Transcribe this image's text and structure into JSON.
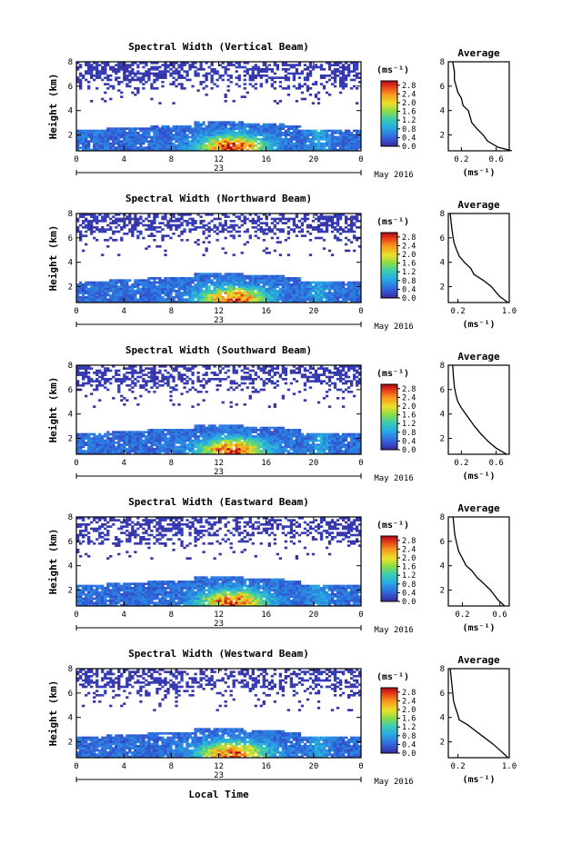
{
  "figure": {
    "date_label": "May 2016",
    "xlabel": "Local Time",
    "ylabel": "Height (km)",
    "colorbar_unit": "(ms⁻¹)",
    "profile_title": "Average",
    "profile_unit": "(ms⁻¹)"
  },
  "chart_data": [
    {
      "type": "heatmap",
      "title": "Spectral Width (Vertical Beam)",
      "xlabel": "Local Time",
      "ylabel": "Height (km)",
      "x_ticks": [
        "0",
        "4",
        "8",
        "12",
        "16",
        "20",
        "0"
      ],
      "x_sublabel": "23",
      "xlim": [
        0,
        24
      ],
      "y_ticks": [
        "2",
        "4",
        "6",
        "8"
      ],
      "ylim": [
        0.7,
        8
      ],
      "colorbar": {
        "unit": "(ms⁻¹)",
        "ticks": [
          "0.0",
          "0.4",
          "0.8",
          "1.2",
          "1.6",
          "2.0",
          "2.4",
          "2.8"
        ],
        "range": [
          0,
          3.0
        ]
      },
      "profile": {
        "title": "Average",
        "xlabel": "(ms⁻¹)",
        "x_ticks": [
          "0.2",
          "0.6"
        ],
        "xlim": [
          0.05,
          0.75
        ],
        "y_ticks": [
          "2",
          "4",
          "6",
          "8"
        ],
        "ylim": [
          0.7,
          8
        ],
        "points": [
          [
            0.78,
            0.7
          ],
          [
            0.62,
            1.0
          ],
          [
            0.5,
            1.5
          ],
          [
            0.45,
            2.0
          ],
          [
            0.38,
            2.5
          ],
          [
            0.32,
            3.0
          ],
          [
            0.3,
            3.5
          ],
          [
            0.28,
            4.0
          ],
          [
            0.22,
            4.4
          ],
          [
            0.2,
            5.0
          ],
          [
            0.16,
            5.5
          ],
          [
            0.14,
            6.0
          ],
          [
            0.12,
            6.5
          ],
          [
            0.12,
            7.2
          ],
          [
            0.1,
            8.0
          ]
        ]
      }
    },
    {
      "type": "heatmap",
      "title": "Spectral Width (Northward Beam)",
      "xlabel": "Local Time",
      "ylabel": "Height (km)",
      "x_ticks": [
        "0",
        "4",
        "8",
        "12",
        "16",
        "20",
        "0"
      ],
      "x_sublabel": "23",
      "xlim": [
        0,
        24
      ],
      "y_ticks": [
        "2",
        "4",
        "6",
        "8"
      ],
      "ylim": [
        0.7,
        8
      ],
      "colorbar": {
        "unit": "(ms⁻¹)",
        "ticks": [
          "0.0",
          "0.4",
          "0.8",
          "1.2",
          "1.6",
          "2.0",
          "2.4",
          "2.8"
        ],
        "range": [
          0,
          3.0
        ]
      },
      "profile": {
        "title": "Average",
        "xlabel": "(ms⁻¹)",
        "x_ticks": [
          "0.2",
          "1.0"
        ],
        "xlim": [
          0.05,
          1.0
        ],
        "y_ticks": [
          "2",
          "4",
          "6",
          "8"
        ],
        "ylim": [
          0.7,
          8
        ],
        "points": [
          [
            0.98,
            0.7
          ],
          [
            0.85,
            1.2
          ],
          [
            0.72,
            2.0
          ],
          [
            0.6,
            2.5
          ],
          [
            0.45,
            3.0
          ],
          [
            0.4,
            3.5
          ],
          [
            0.3,
            4.0
          ],
          [
            0.22,
            4.5
          ],
          [
            0.18,
            5.0
          ],
          [
            0.14,
            5.6
          ],
          [
            0.12,
            6.2
          ],
          [
            0.1,
            7.0
          ],
          [
            0.08,
            8.0
          ]
        ]
      }
    },
    {
      "type": "heatmap",
      "title": "Spectral Width (Southward Beam)",
      "xlabel": "Local Time",
      "ylabel": "Height (km)",
      "x_ticks": [
        "0",
        "4",
        "8",
        "12",
        "16",
        "20",
        "0"
      ],
      "x_sublabel": "23",
      "xlim": [
        0,
        24
      ],
      "y_ticks": [
        "2",
        "4",
        "6",
        "8"
      ],
      "ylim": [
        0.7,
        8
      ],
      "colorbar": {
        "unit": "(ms⁻¹)",
        "ticks": [
          "0.0",
          "0.4",
          "0.8",
          "1.2",
          "1.6",
          "2.0",
          "2.4",
          "2.8"
        ],
        "range": [
          0,
          3.0
        ]
      },
      "profile": {
        "title": "Average",
        "xlabel": "(ms⁻¹)",
        "x_ticks": [
          "0.2",
          "0.6"
        ],
        "xlim": [
          0.05,
          0.75
        ],
        "y_ticks": [
          "2",
          "4",
          "6",
          "8"
        ],
        "ylim": [
          0.7,
          8
        ],
        "points": [
          [
            0.72,
            0.7
          ],
          [
            0.6,
            1.2
          ],
          [
            0.5,
            1.8
          ],
          [
            0.42,
            2.4
          ],
          [
            0.35,
            3.0
          ],
          [
            0.3,
            3.5
          ],
          [
            0.25,
            4.0
          ],
          [
            0.2,
            4.5
          ],
          [
            0.16,
            5.0
          ],
          [
            0.14,
            5.5
          ],
          [
            0.12,
            6.2
          ],
          [
            0.11,
            7.0
          ],
          [
            0.1,
            8.0
          ]
        ]
      }
    },
    {
      "type": "heatmap",
      "title": "Spectral Width (Eastward Beam)",
      "xlabel": "Local Time",
      "ylabel": "Height (km)",
      "x_ticks": [
        "0",
        "4",
        "8",
        "12",
        "16",
        "20",
        "0"
      ],
      "x_sublabel": "23",
      "xlim": [
        0,
        24
      ],
      "y_ticks": [
        "2",
        "4",
        "6",
        "8"
      ],
      "ylim": [
        0.7,
        8
      ],
      "colorbar": {
        "unit": "(ms⁻¹)",
        "ticks": [
          "0.0",
          "0.4",
          "0.8",
          "1.2",
          "1.6",
          "2.0",
          "2.4",
          "2.8"
        ],
        "range": [
          0,
          3.0
        ]
      },
      "profile": {
        "title": "Average",
        "xlabel": "(ms⁻¹)",
        "x_ticks": [
          "0.2",
          "0.6"
        ],
        "xlim": [
          0.05,
          0.7
        ],
        "y_ticks": [
          "2",
          "4",
          "6",
          "8"
        ],
        "ylim": [
          0.7,
          8
        ],
        "points": [
          [
            0.65,
            0.7
          ],
          [
            0.58,
            1.2
          ],
          [
            0.5,
            2.0
          ],
          [
            0.42,
            2.6
          ],
          [
            0.36,
            3.0
          ],
          [
            0.3,
            3.6
          ],
          [
            0.24,
            4.0
          ],
          [
            0.2,
            4.6
          ],
          [
            0.16,
            5.2
          ],
          [
            0.14,
            5.8
          ],
          [
            0.12,
            6.5
          ],
          [
            0.11,
            7.2
          ],
          [
            0.1,
            8.0
          ]
        ]
      }
    },
    {
      "type": "heatmap",
      "title": "Spectral Width (Westward Beam)",
      "xlabel": "Local Time",
      "ylabel": "Height (km)",
      "x_ticks": [
        "0",
        "4",
        "8",
        "12",
        "16",
        "20",
        "0"
      ],
      "x_sublabel": "23",
      "xlim": [
        0,
        24
      ],
      "y_ticks": [
        "2",
        "4",
        "6",
        "8"
      ],
      "ylim": [
        0.7,
        8
      ],
      "colorbar": {
        "unit": "(ms⁻¹)",
        "ticks": [
          "0.0",
          "0.4",
          "0.8",
          "1.2",
          "1.6",
          "2.0",
          "2.4",
          "2.8"
        ],
        "range": [
          0,
          3.0
        ]
      },
      "profile": {
        "title": "Average",
        "xlabel": "(ms⁻¹)",
        "x_ticks": [
          "0.2",
          "1.0"
        ],
        "xlim": [
          0.05,
          1.0
        ],
        "y_ticks": [
          "2",
          "4",
          "6",
          "8"
        ],
        "ylim": [
          0.7,
          8
        ],
        "points": [
          [
            0.98,
            0.7
          ],
          [
            0.88,
            1.2
          ],
          [
            0.75,
            1.8
          ],
          [
            0.6,
            2.4
          ],
          [
            0.45,
            3.0
          ],
          [
            0.35,
            3.4
          ],
          [
            0.22,
            3.8
          ],
          [
            0.2,
            4.2
          ],
          [
            0.16,
            4.8
          ],
          [
            0.13,
            5.4
          ],
          [
            0.12,
            6.0
          ],
          [
            0.1,
            7.0
          ],
          [
            0.08,
            8.0
          ]
        ]
      }
    }
  ]
}
